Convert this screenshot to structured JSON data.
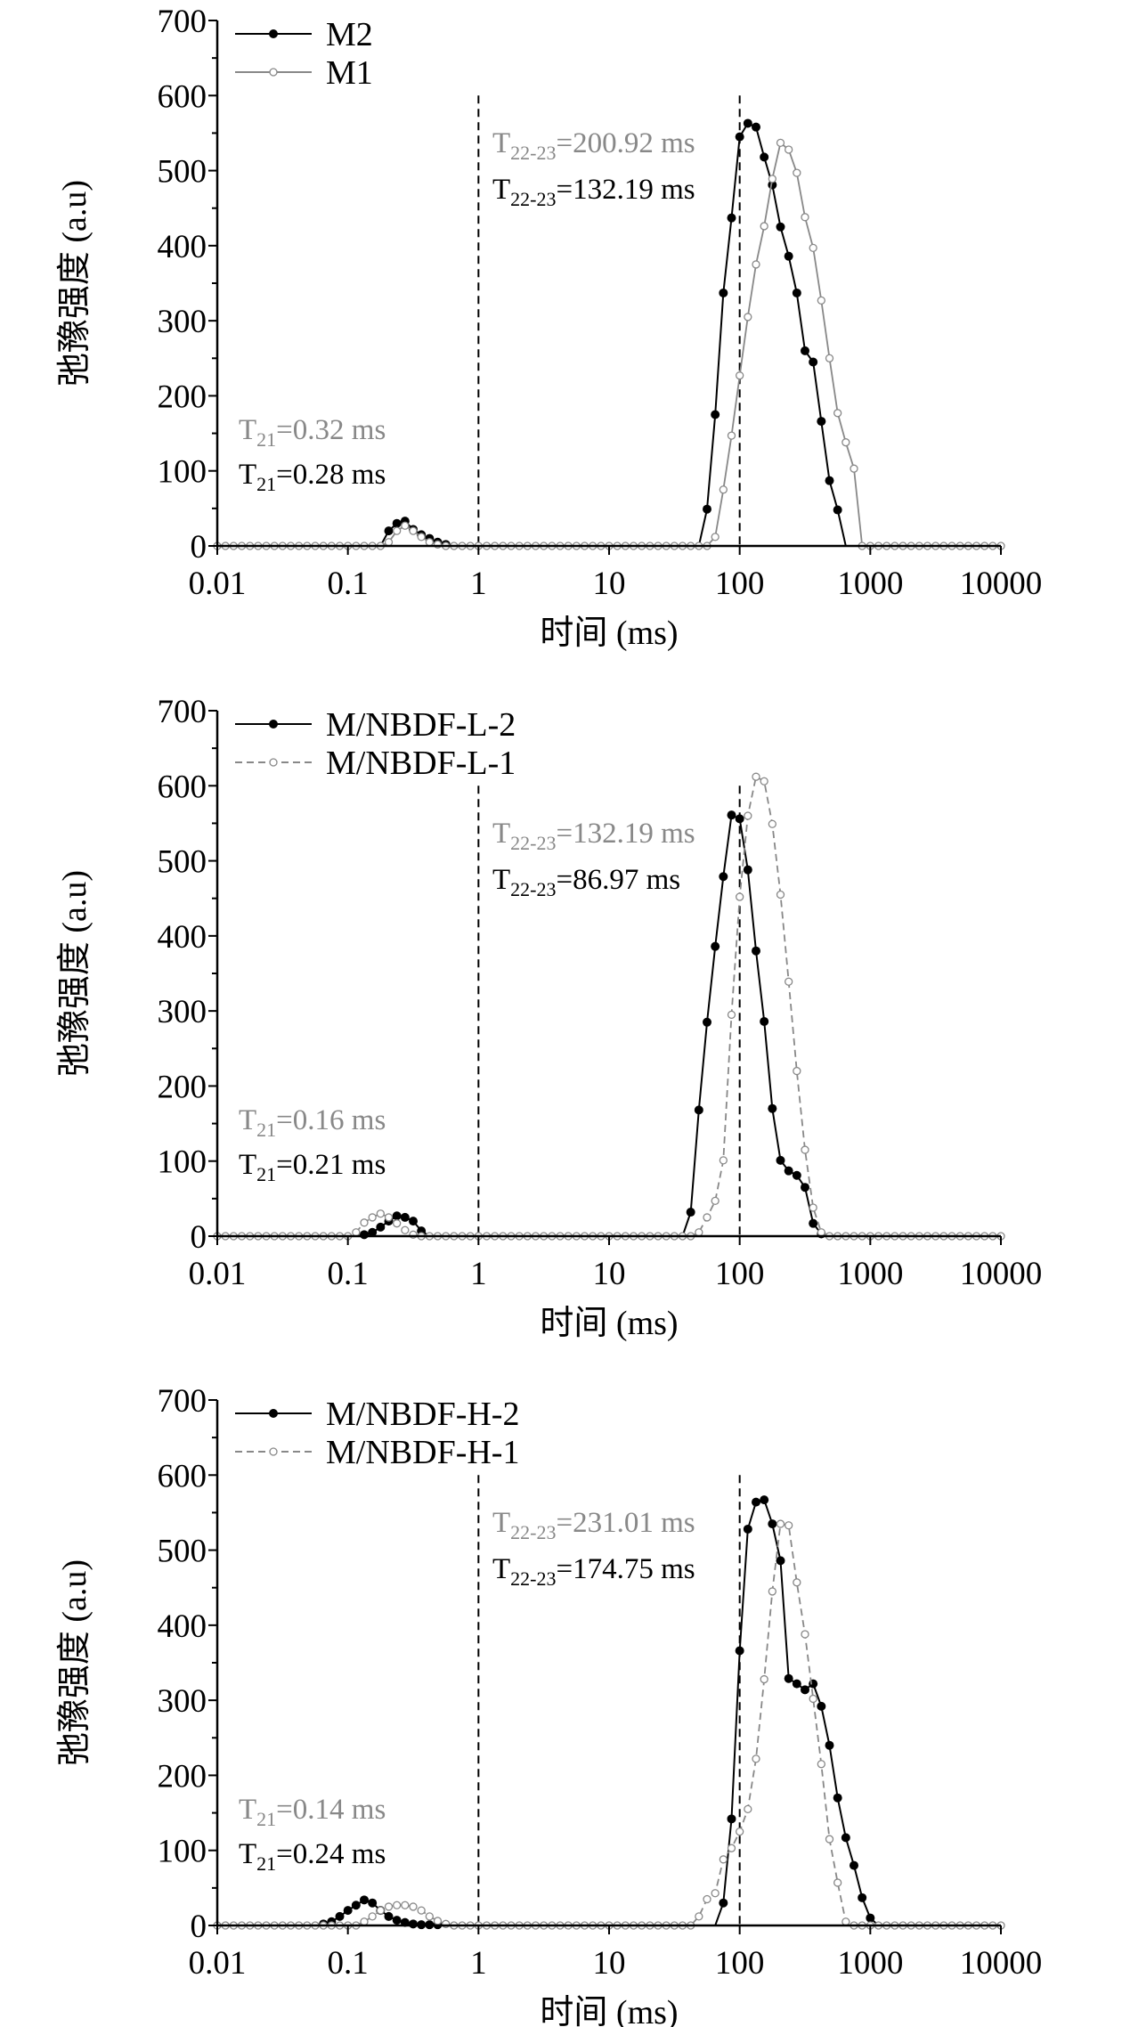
{
  "chart_data": [
    {
      "type": "line",
      "xlabel": "时间 (ms)",
      "ylabel": "弛豫强度 (a.u)",
      "xscale": "log",
      "xlim": [
        0.01,
        10000
      ],
      "ylim": [
        0,
        700
      ],
      "xticks": [
        {
          "v": 0.01,
          "label": "0.01"
        },
        {
          "v": 0.1,
          "label": "0.1"
        },
        {
          "v": 1,
          "label": "1"
        },
        {
          "v": 10,
          "label": "10"
        },
        {
          "v": 100,
          "label": "100"
        },
        {
          "v": 1000,
          "label": "1000"
        },
        {
          "v": 10000,
          "label": "10000"
        }
      ],
      "yticks": [
        0,
        100,
        200,
        300,
        400,
        500,
        600,
        700
      ],
      "x_grid": {
        "start": 0.01,
        "end": 10000,
        "points_per_decade": 16
      },
      "legend": "top-left",
      "reference_lines_x": [
        1,
        100
      ],
      "reference_line_top": 600,
      "series": [
        {
          "name": "M2",
          "color": "#000000",
          "style": "solid",
          "marker": "filled",
          "peaks": [
            {
              "start_x": 0.188,
              "values": [
                0,
                20,
                30,
                33,
                22,
                15,
                10,
                5,
                2
              ]
            },
            {
              "start_x": 57,
              "values": [
                49,
                175,
                337,
                437,
                545,
                563,
                558,
                518,
                481,
                425,
                386,
                337,
                260,
                245,
                166,
                87,
                48
              ]
            }
          ]
        },
        {
          "name": "M1",
          "color": "#888888",
          "style": "solid",
          "marker": "open",
          "peaks": [
            {
              "start_x": 0.21,
              "values": [
                5,
                20,
                27,
                20,
                12,
                5,
                2
              ]
            },
            {
              "start_x": 65.6,
              "values": [
                12,
                75,
                147,
                227,
                305,
                375,
                426,
                489,
                537,
                528,
                497,
                438,
                397,
                327,
                250,
                177,
                138,
                103
              ]
            }
          ]
        }
      ],
      "annotations": [
        {
          "main": "T",
          "sub": "22-23",
          "rest": "=200.92 ms",
          "color": "#888888"
        },
        {
          "main": "T",
          "sub": "22-23",
          "rest": "=132.19 ms",
          "color": "#000000"
        },
        {
          "main": "T",
          "sub": "21",
          "rest": "=0.32 ms",
          "color": "#888888"
        },
        {
          "main": "T",
          "sub": "21",
          "rest": "=0.28 ms",
          "color": "#000000"
        }
      ]
    },
    {
      "type": "line",
      "xlabel": "时间 (ms)",
      "ylabel": "弛豫强度 (a.u)",
      "xscale": "log",
      "xlim": [
        0.01,
        10000
      ],
      "ylim": [
        0,
        700
      ],
      "xticks": [
        {
          "v": 0.01,
          "label": "0.01"
        },
        {
          "v": 0.1,
          "label": "0.1"
        },
        {
          "v": 1,
          "label": "1"
        },
        {
          "v": 10,
          "label": "10"
        },
        {
          "v": 100,
          "label": "100"
        },
        {
          "v": 1000,
          "label": "1000"
        },
        {
          "v": 10000,
          "label": "10000"
        }
      ],
      "yticks": [
        0,
        100,
        200,
        300,
        400,
        500,
        600,
        700
      ],
      "x_grid": {
        "start": 0.01,
        "end": 10000,
        "points_per_decade": 16
      },
      "legend": "top-left",
      "reference_lines_x": [
        1,
        100
      ],
      "reference_line_top": 600,
      "series": [
        {
          "name": "M/NBDF-L-2",
          "color": "#000000",
          "style": "solid",
          "marker": "filled",
          "peaks": [
            {
              "start_x": 0.125,
              "values": [
                2,
                5,
                12,
                20,
                27,
                25,
                20,
                7
              ]
            },
            {
              "start_x": 43.6,
              "values": [
                32,
                168,
                285,
                386,
                479,
                561,
                556,
                488,
                380,
                286,
                170,
                101,
                87,
                81,
                65,
                17,
                3
              ]
            }
          ]
        },
        {
          "name": "M/NBDF-L-1",
          "color": "#888888",
          "style": "dashed",
          "marker": "open",
          "peaks": [
            {
              "start_x": 0.109,
              "values": [
                5,
                18,
                25,
                30,
                25,
                17,
                8,
                2
              ]
            },
            {
              "start_x": 49.6,
              "values": [
                5,
                25,
                47,
                101,
                295,
                452,
                560,
                612,
                606,
                549,
                455,
                339,
                220,
                115,
                38,
                5
              ]
            }
          ]
        }
      ],
      "annotations": [
        {
          "main": "T",
          "sub": "22-23",
          "rest": "=132.19 ms",
          "color": "#888888"
        },
        {
          "main": "T",
          "sub": "22-23",
          "rest": "=86.97 ms",
          "color": "#000000"
        },
        {
          "main": "T",
          "sub": "21",
          "rest": "=0.16 ms",
          "color": "#888888"
        },
        {
          "main": "T",
          "sub": "21",
          "rest": "=0.21 ms",
          "color": "#000000"
        }
      ]
    },
    {
      "type": "line",
      "xlabel": "时间 (ms)",
      "ylabel": "弛豫强度 (a.u)",
      "xscale": "log",
      "xlim": [
        0.01,
        10000
      ],
      "ylim": [
        0,
        700
      ],
      "xticks": [
        {
          "v": 0.01,
          "label": "0.01"
        },
        {
          "v": 0.1,
          "label": "0.1"
        },
        {
          "v": 1,
          "label": "1"
        },
        {
          "v": 10,
          "label": "10"
        },
        {
          "v": 100,
          "label": "100"
        },
        {
          "v": 1000,
          "label": "1000"
        },
        {
          "v": 10000,
          "label": "10000"
        }
      ],
      "yticks": [
        0,
        100,
        200,
        300,
        400,
        500,
        600,
        700
      ],
      "x_grid": {
        "start": 0.01,
        "end": 10000,
        "points_per_decade": 16
      },
      "legend": "top-left",
      "reference_lines_x": [
        1,
        100
      ],
      "reference_line_top": 600,
      "series": [
        {
          "name": "M/NBDF-H-2",
          "color": "#000000",
          "style": "solid",
          "marker": "filled",
          "peaks": [
            {
              "start_x": 0.062,
              "values": [
                2,
                5,
                12,
                20,
                27,
                34,
                30,
                20,
                12,
                7,
                4,
                2,
                1,
                1,
                1
              ]
            },
            {
              "start_x": 76.5,
              "values": [
                30,
                142,
                366,
                528,
                564,
                567,
                535,
                486,
                329,
                322,
                314,
                322,
                292,
                240,
                170,
                117,
                80,
                37,
                10
              ]
            }
          ]
        },
        {
          "name": "M/NBDF-H-1",
          "color": "#888888",
          "style": "dashed",
          "marker": "open",
          "peaks": [
            {
              "start_x": 0.125,
              "values": [
                5,
                12,
                20,
                25,
                27,
                27,
                25,
                20,
                12,
                6,
                2
              ]
            },
            {
              "start_x": 50.2,
              "values": [
                12,
                35,
                43,
                88,
                103,
                125,
                155,
                222,
                328,
                445,
                535,
                533,
                457,
                388,
                302,
                215,
                115,
                57,
                5
              ]
            }
          ]
        }
      ],
      "annotations": [
        {
          "main": "T",
          "sub": "22-23",
          "rest": "=231.01 ms",
          "color": "#888888"
        },
        {
          "main": "T",
          "sub": "22-23",
          "rest": "=174.75 ms",
          "color": "#000000"
        },
        {
          "main": "T",
          "sub": "21",
          "rest": "=0.14 ms",
          "color": "#888888"
        },
        {
          "main": "T",
          "sub": "21",
          "rest": "=0.24 ms",
          "color": "#000000"
        }
      ]
    }
  ]
}
